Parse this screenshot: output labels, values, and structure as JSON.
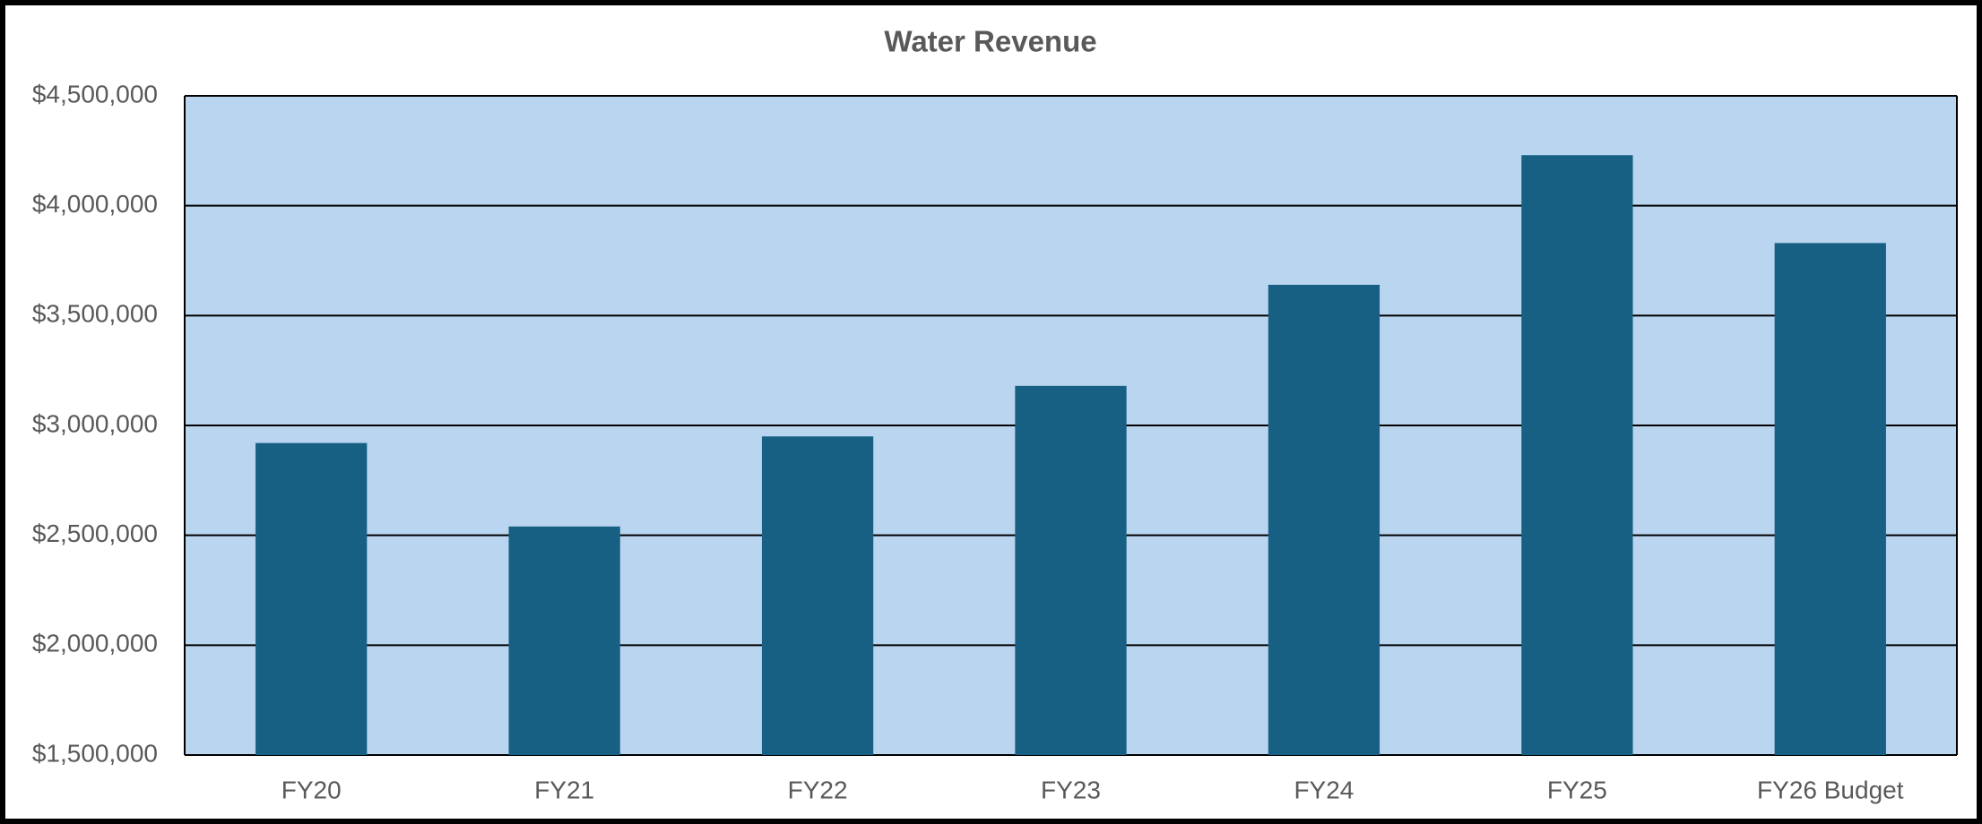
{
  "chart_data": {
    "type": "bar",
    "title": "Water Revenue",
    "categories": [
      "FY20",
      "FY21",
      "FY22",
      "FY23",
      "FY24",
      "FY25",
      "FY26 Budget"
    ],
    "values": [
      2920000,
      2540000,
      2950000,
      3180000,
      3640000,
      4230000,
      3830000
    ],
    "color": "#176084",
    "ylim": [
      1500000,
      4500000
    ],
    "yticks": [
      {
        "value": 1500000,
        "label": "$1,500,000"
      },
      {
        "value": 2000000,
        "label": "$2,000,000"
      },
      {
        "value": 2500000,
        "label": "$2,500,000"
      },
      {
        "value": 3000000,
        "label": "$3,000,000"
      },
      {
        "value": 3500000,
        "label": "$3,500,000"
      },
      {
        "value": 4000000,
        "label": "$4,000,000"
      },
      {
        "value": 4500000,
        "label": "$4,500,000"
      }
    ],
    "grid": true
  }
}
